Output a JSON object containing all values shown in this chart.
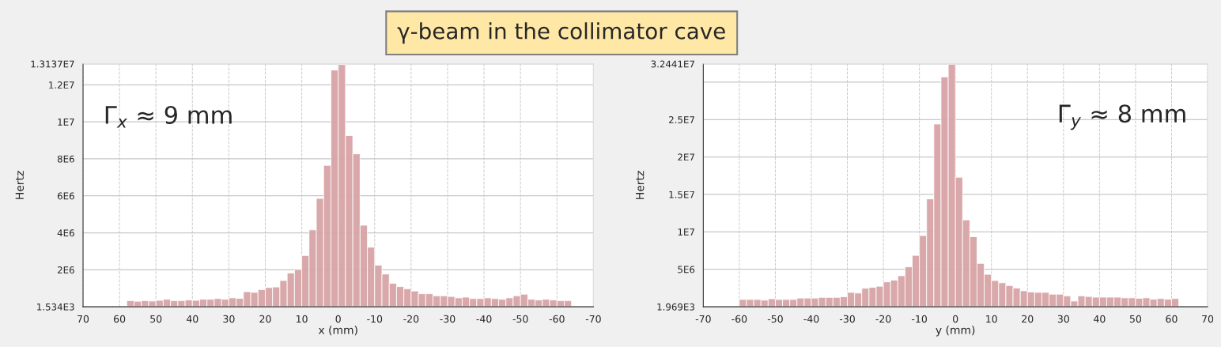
{
  "chart_data": [
    {
      "type": "histogram",
      "title": "γ-beam in the collimator cave",
      "xlabel": "x (mm)",
      "ylabel": "Hertz",
      "annotations": [
        "Γ$_{x}$ ≈ 9 mm"
      ],
      "color": "#d8a4a6",
      "grid": true,
      "bins": [
        58,
        56,
        54,
        52,
        50,
        48,
        46,
        44,
        42,
        40,
        38,
        36,
        34,
        32,
        30,
        28,
        26,
        24,
        22,
        20,
        18,
        16,
        14,
        12,
        10,
        8,
        6,
        4,
        2,
        0,
        -2,
        -4,
        -6,
        -8,
        -10,
        -12,
        -14,
        -16,
        -18,
        -20,
        -22,
        -24,
        -26,
        -28,
        -30,
        -32,
        -34,
        -36,
        -38,
        -40,
        -42,
        -44,
        -46,
        -48,
        -50,
        -52,
        -54,
        -56,
        -58,
        -60,
        -62,
        -64
      ],
      "values": [
        333000,
        296000,
        333000,
        309000,
        346000,
        407000,
        333000,
        333000,
        370000,
        346000,
        407000,
        407000,
        444000,
        407000,
        481000,
        457000,
        815000,
        778000,
        926000,
        1040000,
        1070000,
        1420000,
        1830000,
        2020000,
        2770000,
        4160000,
        5860000,
        7650000,
        12800000,
        13100000,
        9260000,
        8270000,
        4410000,
        3220000,
        2250000,
        1770000,
        1270000,
        1090000,
        975000,
        852000,
        704000,
        704000,
        593000,
        593000,
        556000,
        481000,
        519000,
        444000,
        444000,
        481000,
        444000,
        407000,
        481000,
        593000,
        679000,
        407000,
        370000,
        407000,
        370000,
        333000,
        333000
      ],
      "xlim": [
        70,
        -70
      ],
      "xticks": [
        70,
        60,
        50,
        40,
        30,
        20,
        10,
        0,
        -10,
        -20,
        -30,
        -40,
        -50,
        -60,
        -70
      ],
      "ylim": [
        1534,
        13137000
      ],
      "yticks": [
        {
          "value": 1534,
          "label": "1.534E3"
        },
        {
          "value": 2000000,
          "label": "2E6"
        },
        {
          "value": 4000000,
          "label": "4E6"
        },
        {
          "value": 6000000,
          "label": "6E6"
        },
        {
          "value": 8000000,
          "label": "8E6"
        },
        {
          "value": 10000000,
          "label": "1E7"
        },
        {
          "value": 12000000,
          "label": "1.2E7"
        },
        {
          "value": 13137000,
          "label": "1.3137E7"
        }
      ]
    },
    {
      "type": "histogram",
      "xlabel": "y (mm)",
      "ylabel": "Hertz",
      "annotations": [
        "Γ$_{y}$ ≈ 8 mm"
      ],
      "color": "#d8a4a6",
      "grid": true,
      "bins": [
        -60,
        -58,
        -56,
        -54,
        -52,
        -50,
        -48,
        -46,
        -44,
        -42,
        -40,
        -38,
        -36,
        -34,
        -32,
        -30,
        -28,
        -26,
        -24,
        -22,
        -20,
        -18,
        -16,
        -14,
        -12,
        -10,
        -8,
        -6,
        -4,
        -2,
        0,
        2,
        4,
        6,
        8,
        10,
        12,
        14,
        16,
        18,
        20,
        22,
        24,
        26,
        28,
        30,
        32,
        34,
        36,
        38,
        40,
        42,
        44,
        46,
        48,
        50,
        52,
        54,
        56,
        58,
        60,
        62
      ],
      "values": [
        975000,
        975000,
        975000,
        884000,
        1070000,
        975000,
        975000,
        975000,
        1160000,
        1160000,
        1160000,
        1250000,
        1250000,
        1250000,
        1340000,
        1920000,
        1830000,
        2470000,
        2590000,
        2740000,
        3320000,
        3560000,
        4140000,
        5330000,
        6860000,
        9510000,
        14400000,
        24400000,
        30700000,
        32400000,
        17300000,
        11600000,
        9350000,
        5790000,
        4330000,
        3500000,
        3200000,
        2830000,
        2500000,
        2130000,
        1980000,
        1920000,
        1920000,
        1680000,
        1680000,
        1460000,
        762000,
        1460000,
        1370000,
        1280000,
        1280000,
        1280000,
        1280000,
        1190000,
        1190000,
        1130000,
        1190000,
        1010000,
        1100000,
        1010000,
        1100000
      ],
      "xlim": [
        -70,
        70
      ],
      "xticks": [
        -70,
        -60,
        -50,
        -40,
        -30,
        -20,
        -10,
        0,
        10,
        20,
        30,
        40,
        50,
        60,
        70
      ],
      "ylim": [
        1969,
        32441000
      ],
      "yticks": [
        {
          "value": 1969,
          "label": "1.969E3"
        },
        {
          "value": 5000000,
          "label": "5E6"
        },
        {
          "value": 10000000,
          "label": "1E7"
        },
        {
          "value": 15000000,
          "label": "1.5E7"
        },
        {
          "value": 20000000,
          "label": "2E7"
        },
        {
          "value": 25000000,
          "label": "2.5E7"
        },
        {
          "value": 30000000,
          "label": null
        },
        {
          "value": 32441000,
          "label": "3.2441E7"
        }
      ]
    }
  ]
}
